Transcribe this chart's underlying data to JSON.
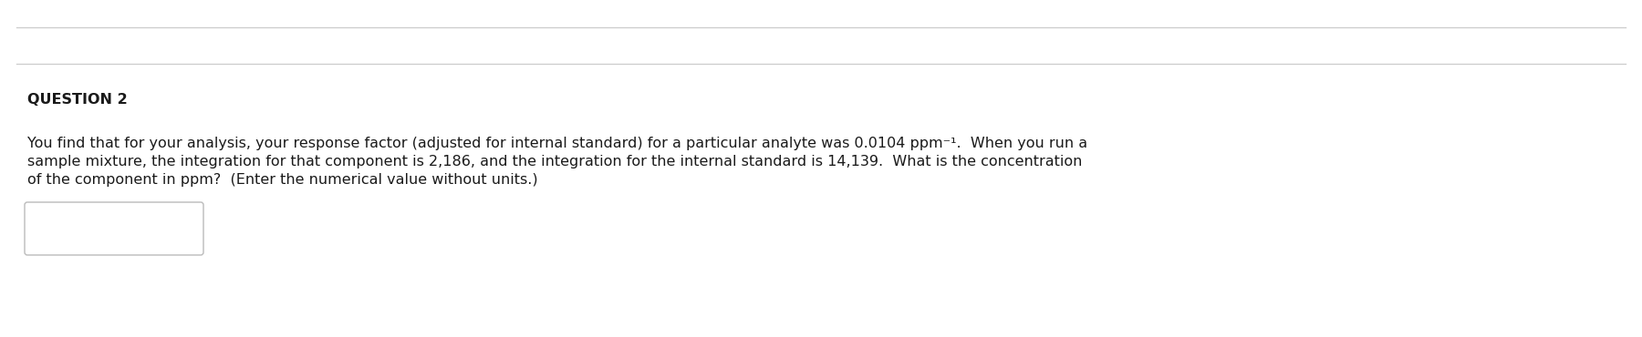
{
  "background_color": "#ffffff",
  "line_color": "#cccccc",
  "question_label": "QUESTION 2",
  "question_label_fontsize": 11.5,
  "body_text_line1": "You find that for your analysis, your response factor (adjusted for internal standard) for a particular analyte was 0.0104 ppm⁻¹.  When you run a",
  "body_text_line2": "sample mixture, the integration for that component is 2,186, and the integration for the internal standard is 14,139.  What is the concentration",
  "body_text_line3": "of the component in ppm?  (Enter the numerical value without units.)",
  "body_fontsize": 11.5,
  "text_color": "#1a1a1a",
  "input_box_color": "#ffffff",
  "input_box_edge_color": "#bbbbbb"
}
